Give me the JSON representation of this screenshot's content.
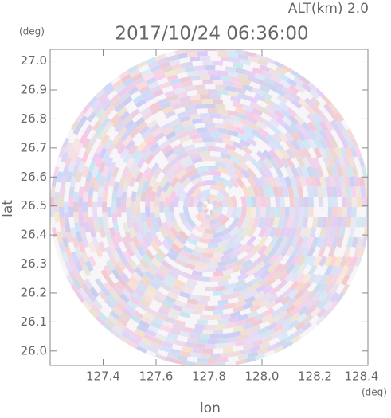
{
  "chart_data": {
    "type": "radar-ppi",
    "title": "2017/10/24 06:36:00",
    "altitude": "ALT(km) 2.0",
    "xlabel": "lon",
    "ylabel": "lat",
    "xunit": "(deg)",
    "yunit": "(deg)",
    "xlim": [
      127.2,
      128.4
    ],
    "ylim": [
      25.95,
      27.04
    ],
    "xticks": [
      127.4,
      127.6,
      127.8,
      {
        "value": 128.0,
        "label": "128.0"
      },
      128.2,
      128.4
    ],
    "yticks": [
      {
        "value": 26.0,
        "label": "26.0"
      },
      26.1,
      26.2,
      26.3,
      26.4,
      26.5,
      26.6,
      26.7,
      26.8,
      26.9,
      {
        "value": 27.0,
        "label": "27.0"
      }
    ]
  }
}
